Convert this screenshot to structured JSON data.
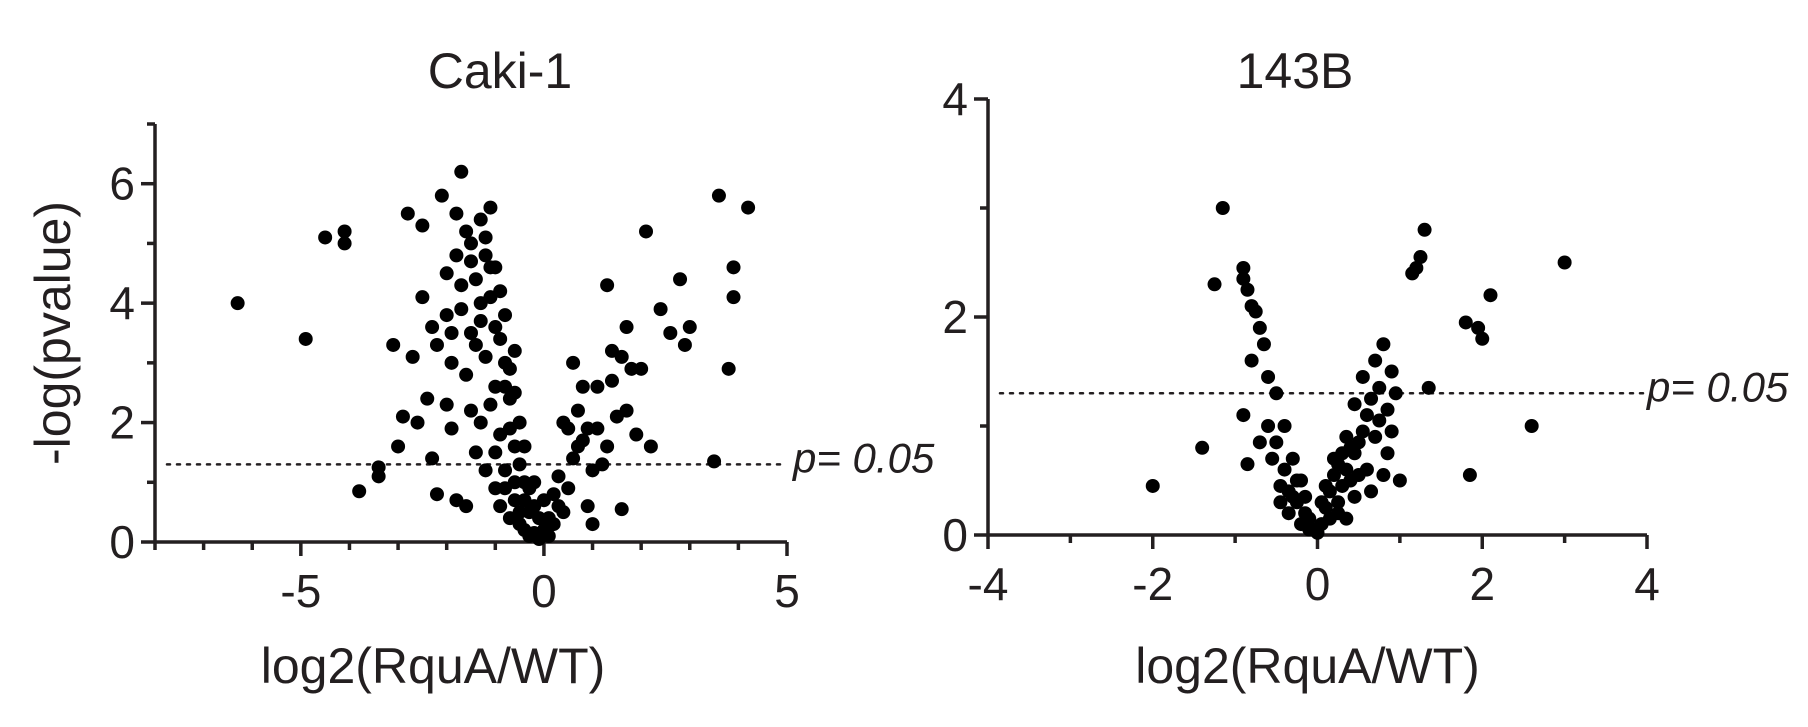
{
  "chart_data": [
    {
      "type": "scatter",
      "title": "Caki-1",
      "xlabel": "log2(RquA/WT)",
      "ylabel": "-log(pvalue)",
      "xlim": [
        -8,
        5
      ],
      "ylim": [
        0,
        7
      ],
      "xticks": [
        -5,
        0,
        5
      ],
      "yticks": [
        0,
        2,
        4,
        6
      ],
      "x_minor_ticks": [
        -8,
        -7,
        -6,
        -4,
        -3,
        -2,
        -1,
        1,
        2,
        3,
        4
      ],
      "y_minor_ticks": [
        1,
        3,
        5,
        7
      ],
      "threshold_y": 1.3,
      "threshold_label": "p= 0.05",
      "grid": false,
      "points": [
        [
          -6.3,
          4.0
        ],
        [
          -4.9,
          3.4
        ],
        [
          -4.5,
          5.1
        ],
        [
          -4.1,
          5.2
        ],
        [
          -4.1,
          5.0
        ],
        [
          -3.8,
          0.85
        ],
        [
          -3.4,
          1.25
        ],
        [
          -3.4,
          1.1
        ],
        [
          -3.1,
          3.3
        ],
        [
          -3.0,
          1.6
        ],
        [
          -2.9,
          2.1
        ],
        [
          -2.8,
          5.5
        ],
        [
          -2.7,
          3.1
        ],
        [
          -2.6,
          2.0
        ],
        [
          -2.5,
          5.3
        ],
        [
          -2.4,
          2.4
        ],
        [
          -2.3,
          1.4
        ],
        [
          -2.2,
          0.8
        ],
        [
          -2.2,
          3.3
        ],
        [
          -2.1,
          5.8
        ],
        [
          -2.0,
          4.5
        ],
        [
          -2.0,
          3.8
        ],
        [
          -1.9,
          3.0
        ],
        [
          -1.9,
          1.9
        ],
        [
          -1.8,
          0.7
        ],
        [
          -1.8,
          5.5
        ],
        [
          -1.7,
          6.2
        ],
        [
          -1.7,
          4.3
        ],
        [
          -1.6,
          2.8
        ],
        [
          -1.6,
          0.6
        ],
        [
          -1.5,
          3.5
        ],
        [
          -1.5,
          2.2
        ],
        [
          -1.4,
          1.5
        ],
        [
          -1.3,
          5.4
        ],
        [
          -1.3,
          4.0
        ],
        [
          -1.2,
          3.1
        ],
        [
          -1.2,
          1.2
        ],
        [
          -1.1,
          5.6
        ],
        [
          -1.1,
          4.6
        ],
        [
          -1.0,
          3.6
        ],
        [
          -1.0,
          2.6
        ],
        [
          -1.0,
          0.9
        ],
        [
          -0.9,
          4.2
        ],
        [
          -0.9,
          1.8
        ],
        [
          -0.8,
          3.0
        ],
        [
          -0.8,
          1.2
        ],
        [
          -0.7,
          2.4
        ],
        [
          -0.7,
          0.4
        ],
        [
          -0.6,
          3.2
        ],
        [
          -0.6,
          1.6
        ],
        [
          -0.5,
          0.3
        ],
        [
          -0.4,
          1.0
        ],
        [
          -0.3,
          0.5
        ],
        [
          -0.2,
          0.15
        ],
        [
          -0.1,
          0.05
        ],
        [
          0.0,
          0.2
        ],
        [
          0.1,
          0.4
        ],
        [
          0.2,
          0.8
        ],
        [
          0.3,
          1.1
        ],
        [
          0.4,
          2.0
        ],
        [
          0.5,
          0.9
        ],
        [
          0.6,
          3.0
        ],
        [
          0.7,
          2.2
        ],
        [
          0.8,
          1.7
        ],
        [
          0.9,
          0.6
        ],
        [
          1.0,
          0.3
        ],
        [
          1.1,
          2.6
        ],
        [
          1.2,
          1.3
        ],
        [
          1.3,
          4.3
        ],
        [
          1.4,
          3.2
        ],
        [
          1.5,
          2.1
        ],
        [
          1.6,
          0.55
        ],
        [
          1.7,
          3.6
        ],
        [
          1.8,
          2.9
        ],
        [
          1.9,
          1.8
        ],
        [
          2.0,
          2.9
        ],
        [
          2.1,
          5.2
        ],
        [
          2.2,
          1.6
        ],
        [
          2.4,
          3.9
        ],
        [
          2.6,
          3.5
        ],
        [
          2.8,
          4.4
        ],
        [
          2.9,
          3.3
        ],
        [
          3.0,
          3.6
        ],
        [
          3.5,
          1.35
        ],
        [
          3.6,
          5.8
        ],
        [
          3.8,
          2.9
        ],
        [
          3.9,
          4.6
        ],
        [
          3.9,
          4.1
        ],
        [
          4.2,
          5.6
        ],
        [
          -2.5,
          4.1
        ],
        [
          -2.3,
          3.6
        ],
        [
          -1.8,
          4.8
        ],
        [
          -1.6,
          5.2
        ],
        [
          -1.5,
          4.7
        ],
        [
          -1.4,
          4.4
        ],
        [
          -1.4,
          3.3
        ],
        [
          -1.3,
          2.0
        ],
        [
          -1.2,
          4.8
        ],
        [
          -1.1,
          4.1
        ],
        [
          -1.1,
          2.3
        ],
        [
          -1.0,
          1.5
        ],
        [
          -0.9,
          3.4
        ],
        [
          -0.9,
          0.6
        ],
        [
          -0.8,
          2.6
        ],
        [
          -0.8,
          0.9
        ],
        [
          -0.7,
          1.9
        ],
        [
          -0.6,
          1.0
        ],
        [
          -0.6,
          0.7
        ],
        [
          -0.5,
          2.0
        ],
        [
          -0.5,
          1.3
        ],
        [
          -0.4,
          0.7
        ],
        [
          -0.4,
          0.2
        ],
        [
          -0.3,
          0.9
        ],
        [
          -0.3,
          0.1
        ],
        [
          -0.2,
          0.6
        ],
        [
          -0.1,
          0.4
        ],
        [
          0.1,
          0.1
        ],
        [
          0.2,
          0.3
        ],
        [
          0.3,
          0.6
        ],
        [
          0.5,
          1.9
        ],
        [
          0.6,
          1.4
        ],
        [
          0.8,
          2.6
        ],
        [
          0.9,
          1.9
        ],
        [
          1.0,
          1.2
        ],
        [
          1.1,
          1.9
        ],
        [
          1.3,
          1.6
        ],
        [
          1.4,
          2.7
        ],
        [
          1.6,
          3.1
        ],
        [
          1.7,
          2.2
        ],
        [
          -2.0,
          2.3
        ],
        [
          -1.9,
          3.5
        ],
        [
          -1.7,
          3.9
        ],
        [
          -1.3,
          3.7
        ],
        [
          -1.0,
          4.6
        ],
        [
          -0.7,
          2.9
        ],
        [
          -0.5,
          0.5
        ],
        [
          0.0,
          0.7
        ],
        [
          -1.5,
          5.0
        ],
        [
          -1.2,
          5.1
        ],
        [
          -0.8,
          3.8
        ],
        [
          -0.6,
          2.5
        ],
        [
          -0.4,
          1.6
        ],
        [
          -0.2,
          1.0
        ],
        [
          0.4,
          0.5
        ],
        [
          0.7,
          1.6
        ]
      ]
    },
    {
      "type": "scatter",
      "title": "143B",
      "xlabel": "log2(RquA/WT)",
      "ylabel": "",
      "xlim": [
        -4,
        4
      ],
      "ylim": [
        0,
        4
      ],
      "xticks": [
        -4,
        -2,
        0,
        2,
        4
      ],
      "yticks": [
        0,
        2,
        4
      ],
      "x_minor_ticks": [
        -3,
        -1,
        1,
        3
      ],
      "y_minor_ticks": [
        1,
        3
      ],
      "threshold_y": 1.3,
      "threshold_label": "p= 0.05",
      "grid": false,
      "points": [
        [
          -2.0,
          0.45
        ],
        [
          -1.4,
          0.8
        ],
        [
          -1.25,
          2.3
        ],
        [
          -1.15,
          3.0
        ],
        [
          -0.9,
          2.45
        ],
        [
          -0.9,
          2.35
        ],
        [
          -0.9,
          1.1
        ],
        [
          -0.85,
          0.65
        ],
        [
          -0.85,
          2.25
        ],
        [
          -0.8,
          2.1
        ],
        [
          -0.8,
          1.6
        ],
        [
          -0.75,
          2.05
        ],
        [
          -0.7,
          1.9
        ],
        [
          -0.7,
          0.85
        ],
        [
          -0.65,
          1.75
        ],
        [
          -0.6,
          1.45
        ],
        [
          -0.6,
          1.0
        ],
        [
          -0.55,
          0.7
        ],
        [
          -0.5,
          1.3
        ],
        [
          -0.45,
          0.45
        ],
        [
          -0.4,
          1.0
        ],
        [
          -0.35,
          0.4
        ],
        [
          -0.3,
          0.7
        ],
        [
          -0.25,
          0.3
        ],
        [
          -0.2,
          0.5
        ],
        [
          -0.15,
          0.2
        ],
        [
          -0.1,
          0.15
        ],
        [
          -0.05,
          0.05
        ],
        [
          0.0,
          0.02
        ],
        [
          0.05,
          0.1
        ],
        [
          0.1,
          0.25
        ],
        [
          0.15,
          0.4
        ],
        [
          0.2,
          0.55
        ],
        [
          0.25,
          0.3
        ],
        [
          0.3,
          0.75
        ],
        [
          0.35,
          0.9
        ],
        [
          0.4,
          0.5
        ],
        [
          0.45,
          1.2
        ],
        [
          0.5,
          0.85
        ],
        [
          0.55,
          1.45
        ],
        [
          0.6,
          0.6
        ],
        [
          0.65,
          1.25
        ],
        [
          0.7,
          1.6
        ],
        [
          0.75,
          1.05
        ],
        [
          0.8,
          1.75
        ],
        [
          0.85,
          0.75
        ],
        [
          0.9,
          1.5
        ],
        [
          0.95,
          1.3
        ],
        [
          1.0,
          0.5
        ],
        [
          1.15,
          2.4
        ],
        [
          1.2,
          2.45
        ],
        [
          1.25,
          2.55
        ],
        [
          1.3,
          2.8
        ],
        [
          1.35,
          1.35
        ],
        [
          1.8,
          1.95
        ],
        [
          1.85,
          0.55
        ],
        [
          1.95,
          1.9
        ],
        [
          2.0,
          1.8
        ],
        [
          2.1,
          2.2
        ],
        [
          2.6,
          1.0
        ],
        [
          3.0,
          2.5
        ],
        [
          -0.5,
          0.85
        ],
        [
          -0.45,
          0.3
        ],
        [
          -0.4,
          0.6
        ],
        [
          -0.35,
          0.2
        ],
        [
          -0.3,
          0.35
        ],
        [
          -0.25,
          0.5
        ],
        [
          -0.2,
          0.1
        ],
        [
          -0.15,
          0.35
        ],
        [
          -0.1,
          0.05
        ],
        [
          0.05,
          0.3
        ],
        [
          0.1,
          0.45
        ],
        [
          0.15,
          0.15
        ],
        [
          0.2,
          0.7
        ],
        [
          0.25,
          0.2
        ],
        [
          0.3,
          0.45
        ],
        [
          0.35,
          0.6
        ],
        [
          0.4,
          0.8
        ],
        [
          0.45,
          0.35
        ],
        [
          0.5,
          0.55
        ],
        [
          0.55,
          0.95
        ],
        [
          0.6,
          1.1
        ],
        [
          0.65,
          0.4
        ],
        [
          0.7,
          0.9
        ],
        [
          0.75,
          1.35
        ],
        [
          0.8,
          0.55
        ],
        [
          0.85,
          1.15
        ],
        [
          0.9,
          0.95
        ],
        [
          0.25,
          0.65
        ],
        [
          0.35,
          0.15
        ],
        [
          0.45,
          0.75
        ]
      ]
    }
  ]
}
